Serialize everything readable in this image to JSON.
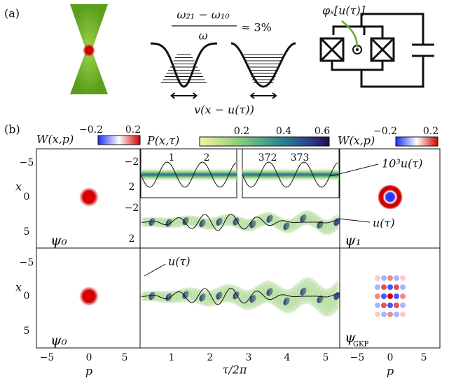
{
  "panel_a": {
    "label": "(a)",
    "ratio_numerator": "ω₂₁ − ω₁₀",
    "ratio_denominator": "ω",
    "ratio_value": "≈ 3%",
    "flux_label": "φₓ[u(τ)]",
    "potential_label": "v(x − u(τ))"
  },
  "panel_b": {
    "label": "(b)",
    "wigner_colorbar_left": {
      "title": "W(x,p)",
      "ticks": [
        "−0.2",
        "0.2"
      ]
    },
    "probability_colorbar": {
      "title": "P(x,τ)",
      "ticks": [
        "0.2",
        "0.4",
        "0.6"
      ]
    },
    "wigner_colorbar_right": {
      "title": "W(x,p)",
      "ticks": [
        "−0.2",
        "0.2"
      ]
    },
    "left_top_yticks": [
      "−5",
      "0",
      "5"
    ],
    "left_bottom_yticks": [
      "−5",
      "0",
      "5"
    ],
    "y_axis_labels": [
      "x",
      "x"
    ],
    "left_xticks": [
      "−5",
      "0",
      "5"
    ],
    "right_xticks": [
      "−5",
      "0",
      "5"
    ],
    "middle_xticks": [
      "1",
      "2",
      "3",
      "4",
      "5"
    ],
    "x_axis_labels": [
      "p",
      "τ/2π",
      "p"
    ],
    "inset_period_labels": [
      "1",
      "2",
      "372",
      "373"
    ],
    "inset_yticks": [
      "−2",
      "2"
    ],
    "middle_top_yticks": [
      "−2",
      "2"
    ],
    "inset_curve_label": "10³u(τ)",
    "top_curve_label": "u(τ)",
    "bottom_curve_label": "u(τ)",
    "state_labels": {
      "top_left": "ψ₀",
      "top_right": "ψ₁",
      "bottom_left": "ψ₀",
      "bottom_right_symbol": "ψ",
      "bottom_right_subscript": "GKP"
    }
  }
}
